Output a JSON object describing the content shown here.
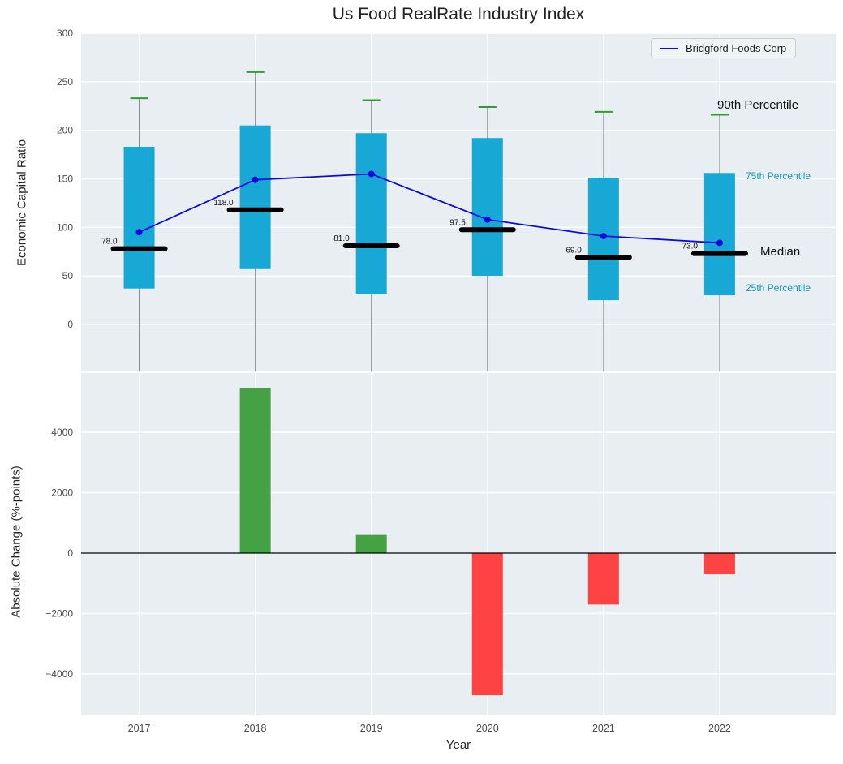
{
  "title": "Us Food RealRate Industry Index",
  "legend": {
    "label": "Bridgford Foods Corp"
  },
  "annotations": {
    "p90": "90th Percentile",
    "p75": "75th Percentile",
    "median": "Median",
    "p25": "25th Percentile"
  },
  "colors": {
    "panel_bg": "#e8eef1",
    "grid": "#ffffff",
    "box_cyan": "#17a8d6",
    "cap_green": "#2ca02c",
    "bar_green": "#44a244",
    "bar_red": "#ff4242",
    "line_blue": "#0b0bdd",
    "whisker_gray": "#8a8a8a",
    "tick_text": "#4d4d4d",
    "annotation_cyan": "#1796ba"
  },
  "chart_data": [
    {
      "type": "box",
      "title": "Us Food RealRate Industry Index",
      "ylabel": "Economic Capital Ratio",
      "categories": [
        "2017",
        "2018",
        "2019",
        "2020",
        "2021",
        "2022"
      ],
      "ylim": [
        -48.5,
        300
      ],
      "yticks": [
        0,
        50,
        100,
        150,
        200,
        250,
        300
      ],
      "grid": true,
      "legend_position": "upper right",
      "series": {
        "p90": [
          233,
          260,
          231,
          224,
          219,
          216
        ],
        "p75": [
          183,
          205,
          197,
          192,
          151,
          156
        ],
        "median": [
          78.0,
          118.0,
          81.0,
          97.5,
          69.0,
          73.0
        ],
        "p25": [
          37,
          57,
          31,
          50,
          25,
          30
        ],
        "company": {
          "name": "Bridgford Foods Corp",
          "values": [
            95,
            149,
            155,
            108,
            91,
            84
          ]
        }
      },
      "median_labels": [
        "78.0",
        "118.0",
        "81.0",
        "97.5",
        "69.0",
        "73.0"
      ]
    },
    {
      "type": "bar",
      "ylabel": "Absolute Change (%-points)",
      "xlabel": "Year",
      "categories": [
        "2017",
        "2018",
        "2019",
        "2020",
        "2021",
        "2022"
      ],
      "values": [
        0,
        5450,
        600,
        -4700,
        -1700,
        -700
      ],
      "ylim": [
        -5370,
        5960
      ],
      "yticks": [
        -4000,
        -2000,
        0,
        2000,
        4000
      ],
      "ytick_labels": [
        "−4000",
        "−2000",
        "0",
        "2000",
        "4000"
      ],
      "grid": true
    }
  ]
}
